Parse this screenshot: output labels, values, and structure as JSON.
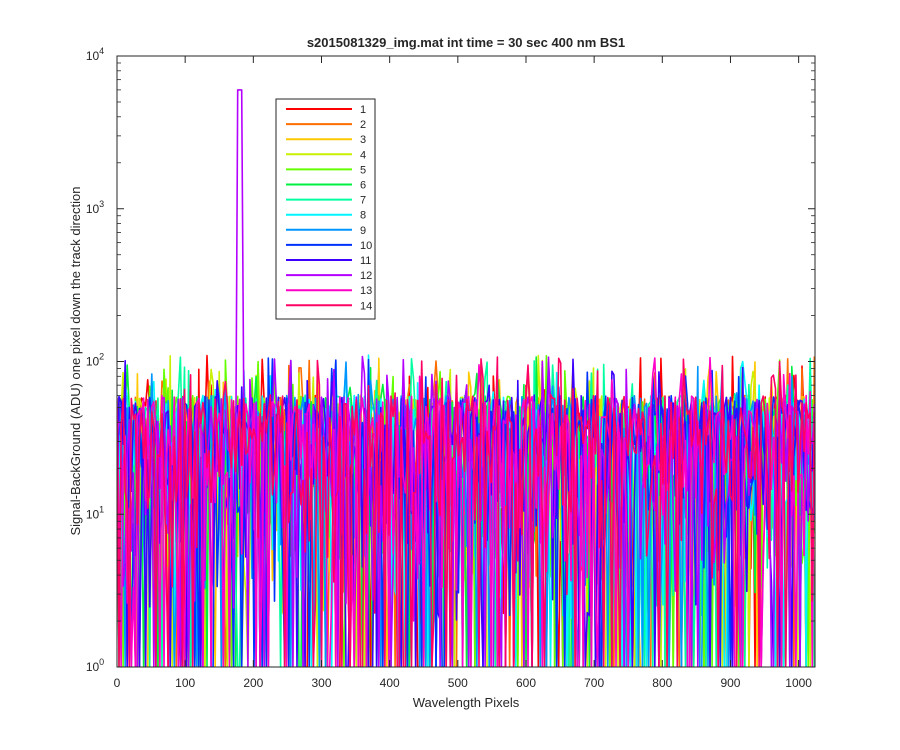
{
  "chart_data": {
    "type": "line",
    "title": "s2015081329_img.mat int time = 30 sec  400 nm BS1",
    "xlabel": "Wavelength Pixels",
    "ylabel": "Signal-BackGround (ADU) one pixel down the track direction",
    "xlim": [
      0,
      1024
    ],
    "ylim": [
      1,
      10000
    ],
    "yscale": "log",
    "xticks": [
      "0",
      "100",
      "200",
      "300",
      "400",
      "500",
      "600",
      "700",
      "800",
      "900",
      "1000"
    ],
    "yticks": [
      {
        "base": "10",
        "exp": "0"
      },
      {
        "base": "10",
        "exp": "1"
      },
      {
        "base": "10",
        "exp": "2"
      },
      {
        "base": "10",
        "exp": "3"
      },
      {
        "base": "10",
        "exp": "4"
      }
    ],
    "legend_position": "upper-left inside",
    "grid": false,
    "series": [
      {
        "name": "1",
        "color": "#ff0000"
      },
      {
        "name": "2",
        "color": "#ff6e00"
      },
      {
        "name": "3",
        "color": "#ffc800"
      },
      {
        "name": "4",
        "color": "#c8f000"
      },
      {
        "name": "5",
        "color": "#64ff00"
      },
      {
        "name": "6",
        "color": "#00f040"
      },
      {
        "name": "7",
        "color": "#00ffa0"
      },
      {
        "name": "8",
        "color": "#00f5ff"
      },
      {
        "name": "9",
        "color": "#0096ff"
      },
      {
        "name": "10",
        "color": "#0032ff"
      },
      {
        "name": "11",
        "color": "#3c00ff"
      },
      {
        "name": "12",
        "color": "#b400ff"
      },
      {
        "name": "13",
        "color": "#ff00c8"
      },
      {
        "name": "14",
        "color": "#ff0064"
      }
    ],
    "data_description": "Noisy signal for all 14 series fluctuating roughly between 1 and 100 ADU across pixels 0-1024; series 12 has a sharp peak of about 6000 near pixel 180.",
    "peak": {
      "series": "12",
      "x": 180,
      "y": 6000
    },
    "noise_band": {
      "low": 1,
      "typical_high": 60,
      "max_spikes": 110
    }
  }
}
